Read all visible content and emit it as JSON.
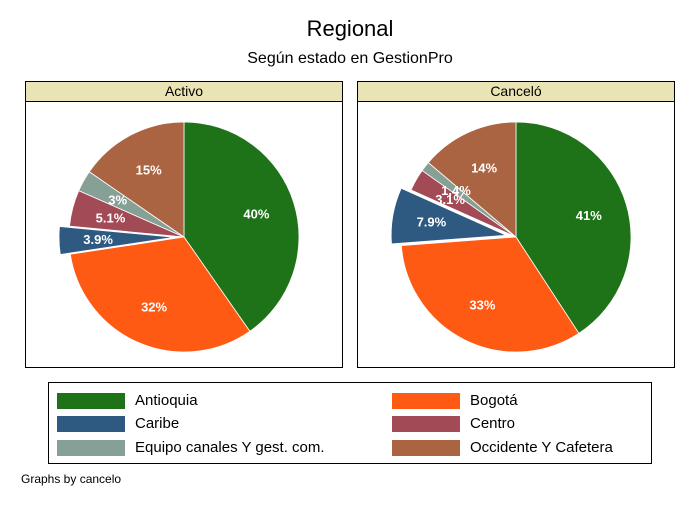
{
  "chart_data": {
    "type": "pie",
    "title": "Regional",
    "subtitle": "Según estado en GestionPro",
    "note": "Graphs by cancelo",
    "legend": [
      {
        "name": "Antioquia",
        "color": "#1e7218"
      },
      {
        "name": "Bogotá",
        "color": "#ff5a14"
      },
      {
        "name": "Caribe",
        "color": "#2e5a82"
      },
      {
        "name": "Centro",
        "color": "#a24a55"
      },
      {
        "name": "Equipo canales Y gest. com.",
        "color": "#87a096"
      },
      {
        "name": "Occidente Y Cafetera",
        "color": "#aa6441"
      }
    ],
    "panels": [
      {
        "label": "Activo",
        "slices": [
          {
            "name": "Antioquia",
            "value": 40.3,
            "label": "40%"
          },
          {
            "name": "Bogotá",
            "value": 32.3,
            "label": "32%"
          },
          {
            "name": "Caribe",
            "value": 3.9,
            "label": "3.9%",
            "exploded": true
          },
          {
            "name": "Centro",
            "value": 5.1,
            "label": "5.1%"
          },
          {
            "name": "Equipo canales Y gest. com.",
            "value": 3.0,
            "label": "3%"
          },
          {
            "name": "Occidente Y Cafetera",
            "value": 15.4,
            "label": "15%"
          }
        ]
      },
      {
        "label": "Canceló",
        "slices": [
          {
            "name": "Antioquia",
            "value": 40.8,
            "label": "41%"
          },
          {
            "name": "Bogotá",
            "value": 33.0,
            "label": "33%"
          },
          {
            "name": "Caribe",
            "value": 7.9,
            "label": "7.9%",
            "exploded": true
          },
          {
            "name": "Centro",
            "value": 3.1,
            "label": "3.1%"
          },
          {
            "name": "Equipo canales Y gest. com.",
            "value": 1.4,
            "label": "1.4%"
          },
          {
            "name": "Occidente Y Cafetera",
            "value": 13.8,
            "label": "14%"
          }
        ]
      }
    ]
  }
}
